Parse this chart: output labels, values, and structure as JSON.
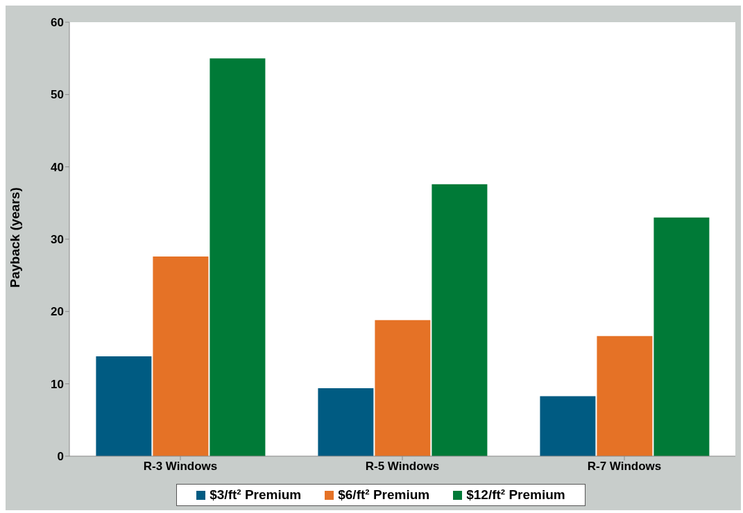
{
  "chart_data": {
    "type": "bar",
    "ylabel": "Payback (years)",
    "categories": [
      "R-3 Windows",
      "R-5 Windows",
      "R-7 Windows"
    ],
    "series": [
      {
        "name": "$3/ft² Premium",
        "color": "#005b82",
        "values": [
          13.8,
          9.4,
          8.3
        ]
      },
      {
        "name": "$6/ft² Premium",
        "color": "#e57226",
        "values": [
          27.6,
          18.8,
          16.6
        ]
      },
      {
        "name": "$12/ft² Premium",
        "color": "#007a37",
        "values": [
          55.0,
          37.6,
          33.0
        ]
      }
    ],
    "ylim": [
      0,
      60
    ],
    "yticks": [
      0,
      10,
      20,
      30,
      40,
      50,
      60
    ],
    "grid": false,
    "legend": "bottom"
  }
}
